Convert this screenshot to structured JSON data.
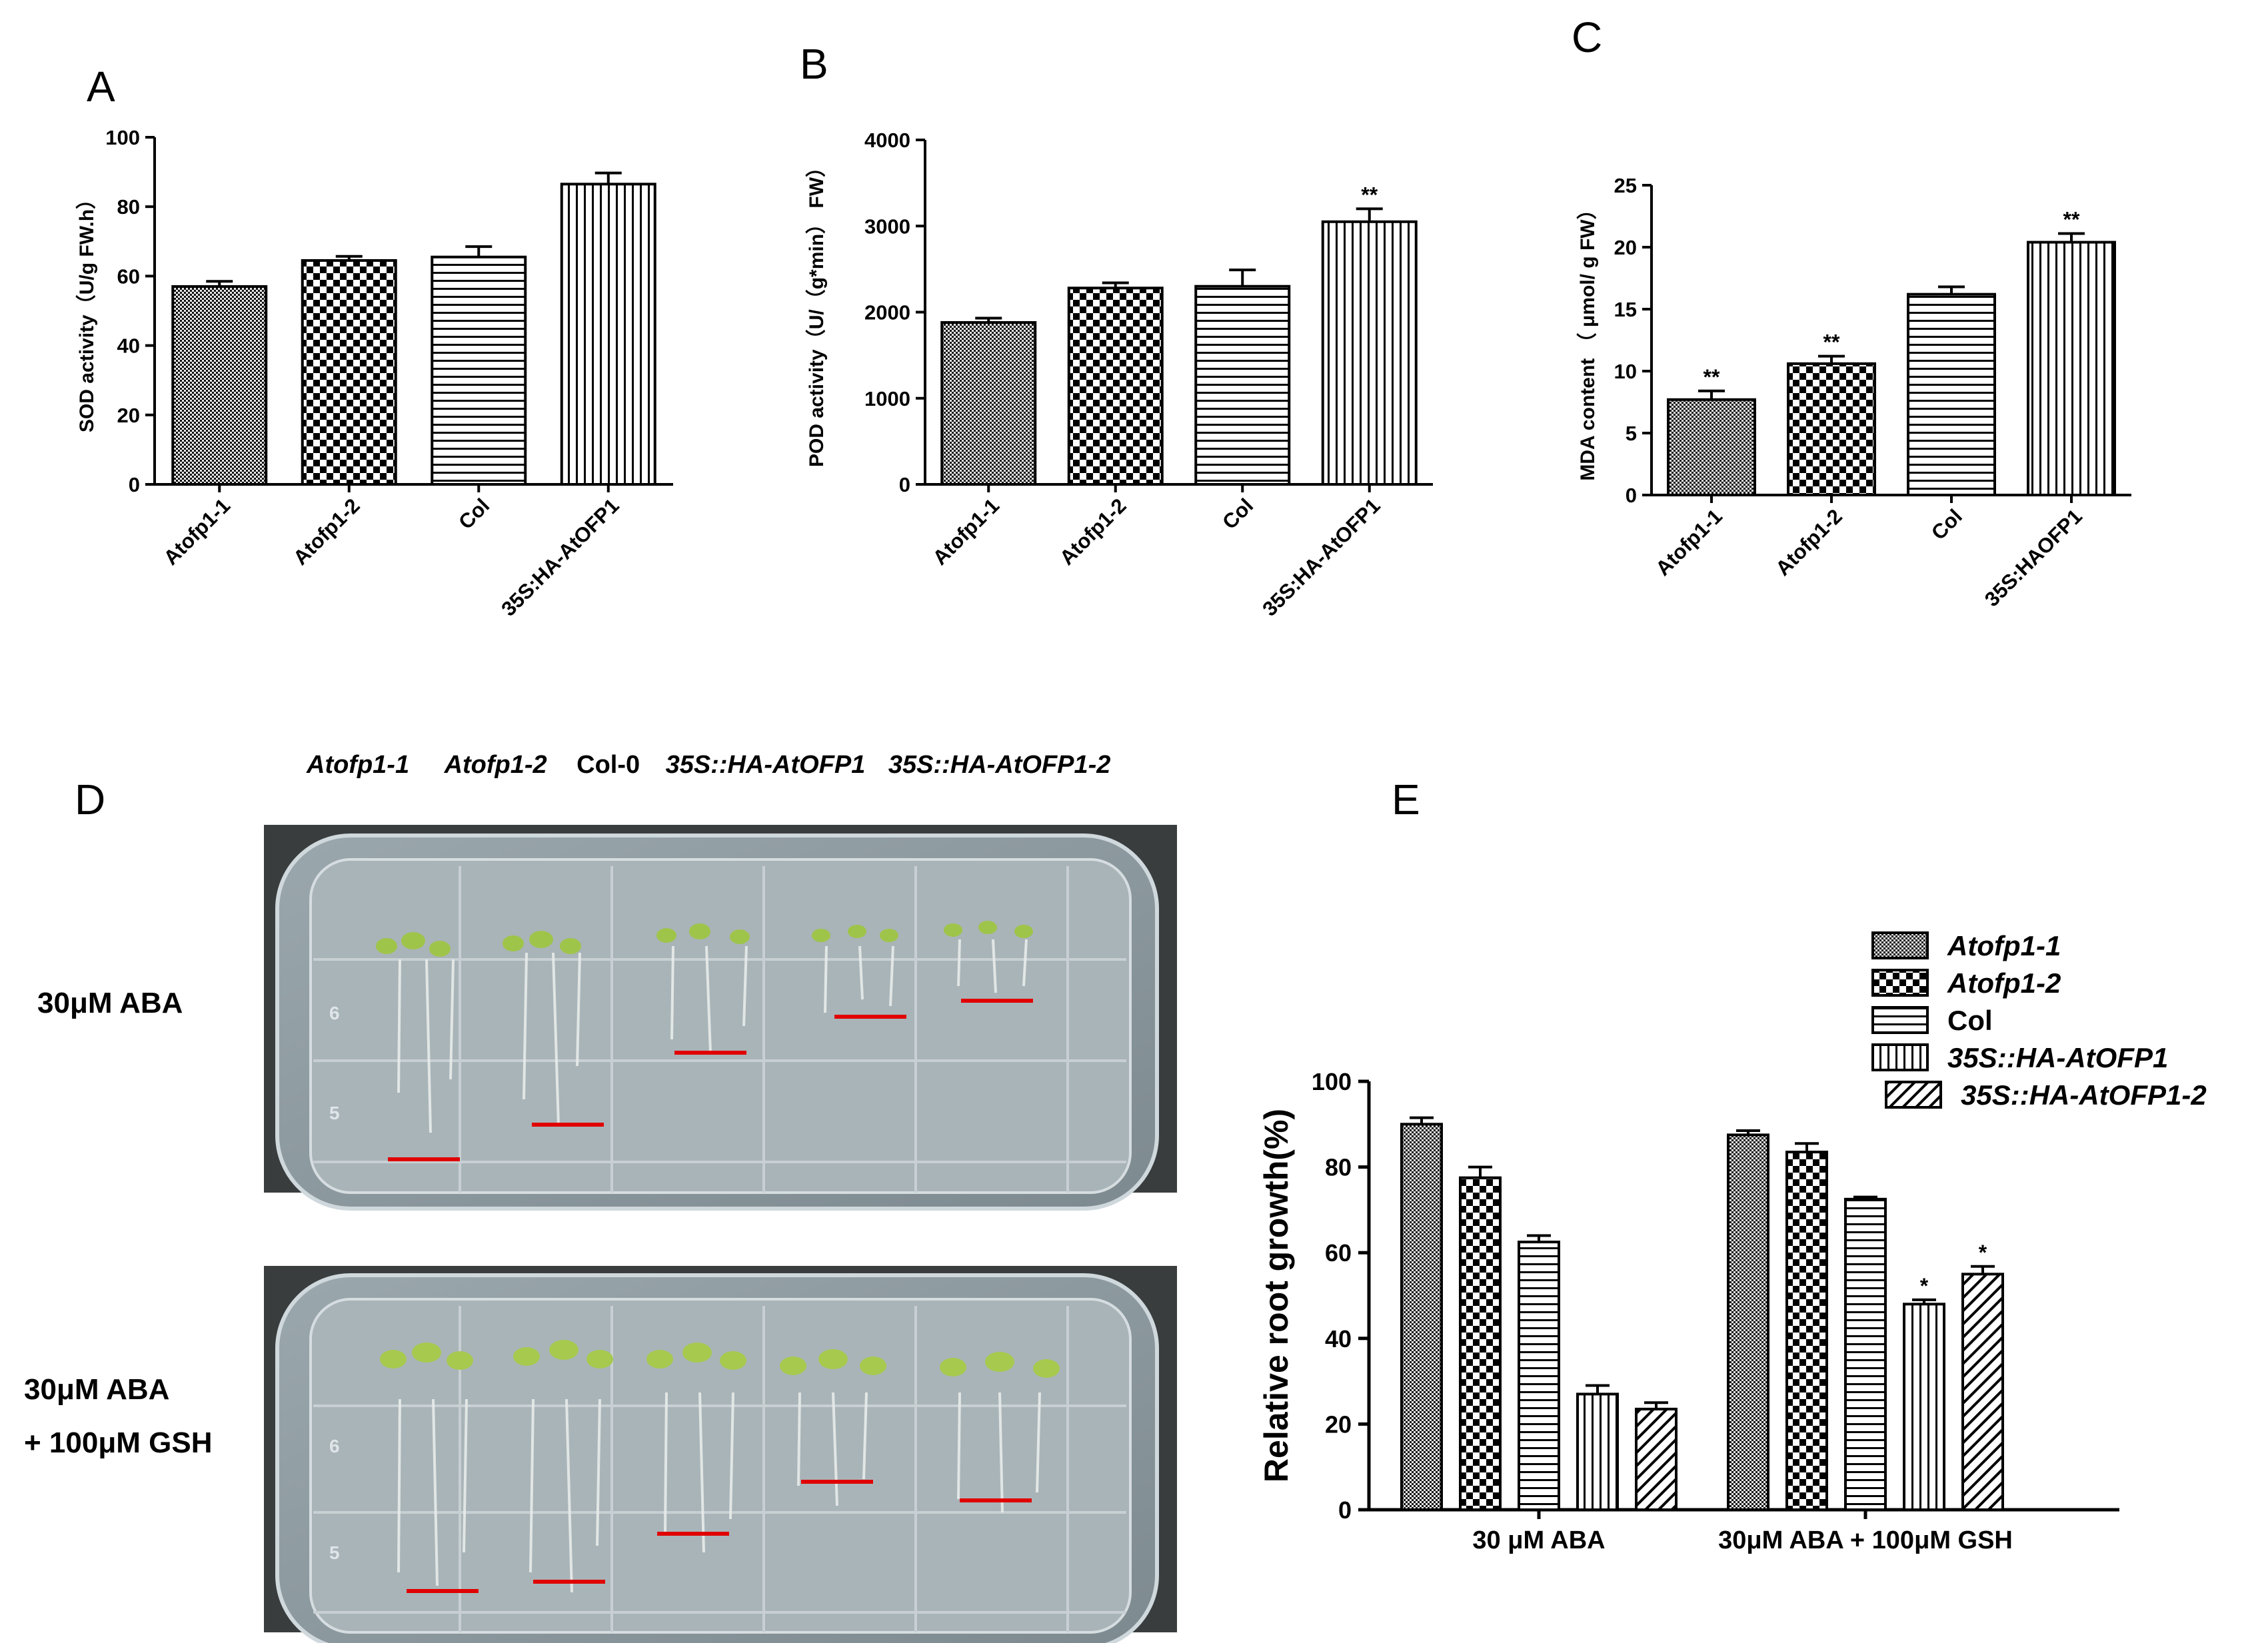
{
  "figure": {
    "labels": [
      "A",
      "B",
      "C",
      "D",
      "E"
    ]
  },
  "chart_data": [
    {
      "panel": "A",
      "type": "bar",
      "ylabel": "SOD activity（U/g FW.h）",
      "yticks": [
        "0",
        "20",
        "40",
        "60",
        "80",
        "100"
      ],
      "ylim": [
        0,
        100
      ],
      "categories": [
        "Atofp1-1",
        "Atofp1-2",
        "Col",
        "35S:HA-AtOFP1"
      ],
      "values": [
        57,
        64.5,
        65.5,
        86.5
      ],
      "errors": [
        1.5,
        1.2,
        3,
        3.2
      ],
      "patterns": [
        "dense",
        "checker",
        "horiz",
        "vert"
      ],
      "significance": [
        "",
        "",
        "",
        ""
      ]
    },
    {
      "panel": "B",
      "type": "bar",
      "ylabel": "POD activity（U/（g*min） FW）",
      "yticks": [
        "0",
        "1000",
        "2000",
        "3000",
        "4000"
      ],
      "ylim": [
        0,
        4000
      ],
      "categories": [
        "Atofp1-1",
        "Atofp1-2",
        "Col",
        "35S:HA-AtOFP1"
      ],
      "values": [
        1880,
        2280,
        2300,
        3050
      ],
      "errors": [
        50,
        60,
        190,
        150
      ],
      "patterns": [
        "dense",
        "checker",
        "horiz",
        "vert"
      ],
      "significance": [
        "",
        "",
        "",
        "**"
      ]
    },
    {
      "panel": "C",
      "type": "bar",
      "ylabel": "MDA content （ μmol/ g FW）",
      "yticks": [
        "0",
        "5",
        "10",
        "15",
        "20",
        "25"
      ],
      "ylim": [
        0,
        25
      ],
      "categories": [
        "Atofp1-1",
        "Atofp1-2",
        "Col",
        "35S:HAOFP1"
      ],
      "values": [
        7.7,
        10.6,
        16.2,
        20.4
      ],
      "errors": [
        0.7,
        0.6,
        0.6,
        0.7
      ],
      "patterns": [
        "dense",
        "checker",
        "horiz",
        "vert"
      ],
      "significance": [
        "**",
        "**",
        "",
        "**"
      ]
    },
    {
      "panel": "E",
      "type": "bar",
      "ylabel": "Relative root growth(%)",
      "yticks": [
        "0",
        "20",
        "40",
        "60",
        "80",
        "100"
      ],
      "ylim": [
        0,
        100
      ],
      "categories": [
        "30 μM ABA",
        "30μM ABA + 100μM GSH"
      ],
      "series": [
        {
          "name": "Atofp1-1",
          "italic": true,
          "pattern": "dense",
          "values": [
            90,
            87.5
          ],
          "errors": [
            1.5,
            1
          ],
          "significance": [
            "",
            ""
          ]
        },
        {
          "name": "Atofp1-2",
          "italic": true,
          "pattern": "checker",
          "values": [
            77.5,
            83.5
          ],
          "errors": [
            2.5,
            2
          ],
          "significance": [
            "",
            ""
          ]
        },
        {
          "name": "Col",
          "italic": false,
          "pattern": "horiz",
          "values": [
            62.5,
            72.5
          ],
          "errors": [
            1.5,
            0.5
          ],
          "significance": [
            "",
            ""
          ]
        },
        {
          "name": "35S::HA-AtOFP1",
          "italic": true,
          "pattern": "vert",
          "values": [
            27,
            48
          ],
          "errors": [
            2,
            1
          ],
          "significance": [
            "",
            "*"
          ]
        },
        {
          "name": "35S::HA-AtOFP1-2",
          "italic": true,
          "pattern": "diag",
          "values": [
            23.5,
            55
          ],
          "errors": [
            1.5,
            1.8
          ],
          "significance": [
            "",
            "*"
          ]
        }
      ]
    }
  ],
  "panelD": {
    "genotypes": [
      {
        "text": "Atofp1-1",
        "italic": true
      },
      {
        "text": "Atofp1-2",
        "italic": true
      },
      {
        "text": "Col-0",
        "italic": false
      },
      {
        "text": "35S::HA-AtOFP1",
        "italic": true
      },
      {
        "text": "35S::HA-AtOFP1-2",
        "italic": true
      }
    ],
    "conditions": [
      "30μM ABA",
      "30μM ABA",
      "+ 100μM GSH"
    ],
    "plate_markings": [
      "6",
      "5"
    ]
  }
}
